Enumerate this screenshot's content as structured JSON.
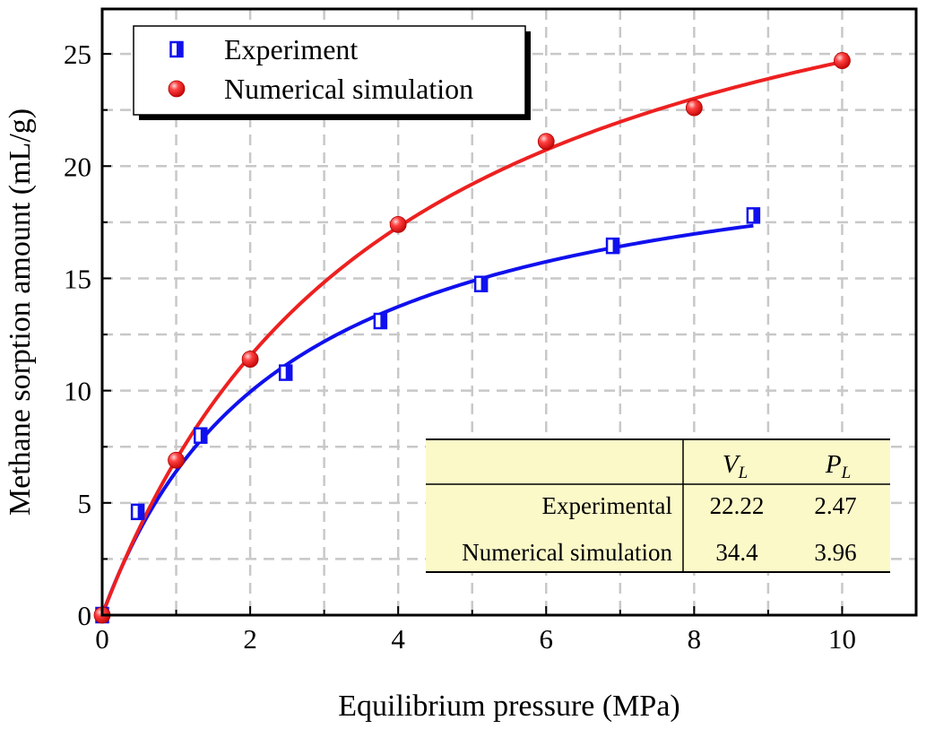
{
  "chart_data": {
    "type": "scatter",
    "xlabel": "Equilibrium pressure (MPa)",
    "ylabel": "Methane sorption amount (mL/g)",
    "xlim": [
      0,
      11
    ],
    "ylim": [
      0,
      27
    ],
    "xticks": [
      0,
      2,
      4,
      6,
      8,
      10
    ],
    "yticks": [
      0,
      5,
      10,
      15,
      20,
      25
    ],
    "grid": true,
    "legend_position": "top-left",
    "series": [
      {
        "name": "Experiment",
        "marker": "half-filled-square",
        "color": "#1010ee",
        "x": [
          0,
          0.48,
          1.33,
          2.48,
          3.76,
          5.12,
          6.9,
          8.8
        ],
        "y": [
          0,
          4.6,
          8.0,
          10.8,
          13.1,
          14.75,
          16.45,
          17.8
        ],
        "fit": {
          "model": "langmuir",
          "VL": 22.22,
          "PL": 2.47,
          "x_max": 8.8
        }
      },
      {
        "name": "Numerical simulation",
        "marker": "sphere",
        "color": "#ee2020",
        "x": [
          0,
          1,
          2,
          4,
          6,
          8,
          10
        ],
        "y": [
          0,
          6.9,
          11.4,
          17.4,
          21.1,
          22.6,
          24.7
        ],
        "fit": {
          "model": "langmuir",
          "VL": 34.4,
          "PL": 3.96,
          "x_max": 10
        }
      }
    ],
    "table": {
      "headers": [
        "",
        "V",
        "P"
      ],
      "header_subscript": "L",
      "rows": [
        [
          "Experimental",
          "22.22",
          "2.47"
        ],
        [
          "Numerical simulation",
          "34.4",
          "3.96"
        ]
      ],
      "background": "#fbf9c8",
      "position": "bottom-right"
    }
  }
}
